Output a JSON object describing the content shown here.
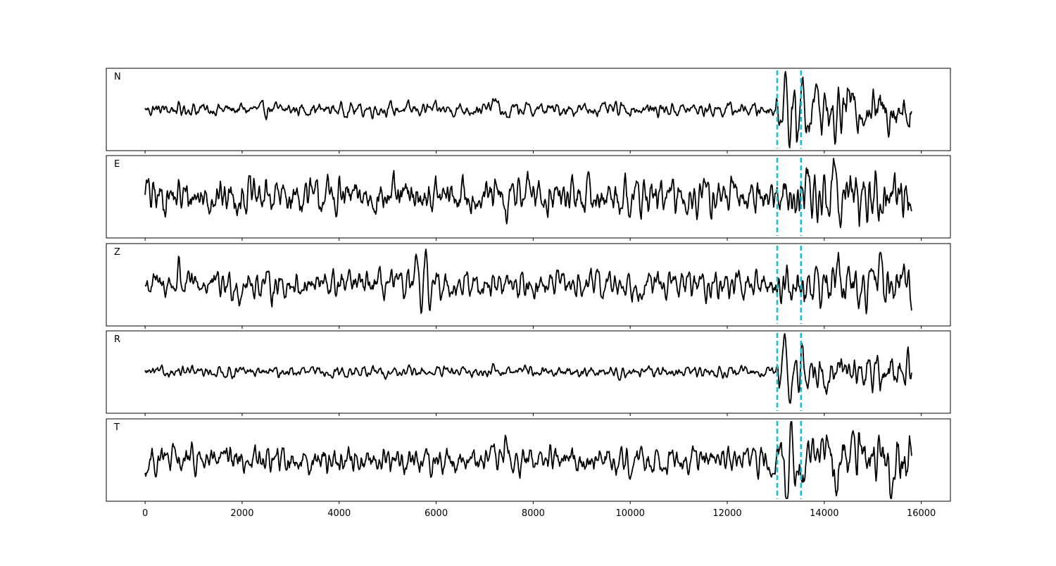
{
  "chart_data": {
    "type": "line",
    "title": "",
    "xlabel": "",
    "ylabel": "",
    "xlim": [
      -800,
      16600
    ],
    "x_ticks": [
      0,
      2000,
      4000,
      6000,
      8000,
      10000,
      12000,
      14000,
      16000
    ],
    "x_tick_labels": [
      "0",
      "2000",
      "4000",
      "6000",
      "8000",
      "10000",
      "12000",
      "14000",
      "16000"
    ],
    "grid": false,
    "legend": "none",
    "sample_range": [
      0,
      15800
    ],
    "pick_lines": [
      {
        "x": 13030,
        "color": "#17becf"
      },
      {
        "x": 13520,
        "color": "#17becf"
      }
    ],
    "trace_color": "#000000",
    "panels": [
      {
        "label": "N",
        "noise": 0.15,
        "features": [
          {
            "t": 7200,
            "a": 0.45,
            "w": 70
          },
          {
            "t": 7450,
            "a": -0.4,
            "w": 60
          },
          {
            "t": 13080,
            "a": -0.25,
            "w": 40
          },
          {
            "t": 13200,
            "a": 1.6,
            "w": 45
          },
          {
            "t": 13280,
            "a": -1.0,
            "w": 50
          },
          {
            "t": 13430,
            "a": -0.9,
            "w": 40
          },
          {
            "t": 13560,
            "a": 1.0,
            "w": 45
          },
          {
            "t": 13660,
            "a": -0.7,
            "w": 45
          },
          {
            "t": 13800,
            "a": 0.6,
            "w": 60
          },
          {
            "t": 14200,
            "a": -0.8,
            "w": 60
          },
          {
            "t": 14500,
            "a": 0.5,
            "w": 70
          }
        ],
        "tail_noise": 0.45
      },
      {
        "label": "E",
        "noise": 0.4,
        "features": [
          {
            "t": 20,
            "a": 0.65,
            "w": 30
          },
          {
            "t": 7450,
            "a": -1.1,
            "w": 50
          },
          {
            "t": 7700,
            "a": 0.6,
            "w": 60
          },
          {
            "t": 7950,
            "a": 0.5,
            "w": 60
          },
          {
            "t": 13200,
            "a": 1.2,
            "w": 45
          },
          {
            "t": 13320,
            "a": -0.9,
            "w": 45
          },
          {
            "t": 13650,
            "a": 1.0,
            "w": 50
          },
          {
            "t": 14200,
            "a": 1.3,
            "w": 55
          },
          {
            "t": 14350,
            "a": -1.1,
            "w": 55
          },
          {
            "t": 14500,
            "a": 0.8,
            "w": 60
          }
        ],
        "tail_noise": 0.55
      },
      {
        "label": "Z",
        "noise": 0.3,
        "features": [
          {
            "t": 700,
            "a": 0.85,
            "w": 40
          },
          {
            "t": 1950,
            "a": -0.55,
            "w": 40
          },
          {
            "t": 5600,
            "a": 0.9,
            "w": 35
          },
          {
            "t": 5700,
            "a": -1.0,
            "w": 35
          },
          {
            "t": 5800,
            "a": 1.5,
            "w": 35
          },
          {
            "t": 5880,
            "a": -0.8,
            "w": 40
          },
          {
            "t": 14300,
            "a": 1.0,
            "w": 60
          },
          {
            "t": 14750,
            "a": -0.9,
            "w": 55
          },
          {
            "t": 15100,
            "a": 0.9,
            "w": 55
          }
        ],
        "tail_noise": 0.45
      },
      {
        "label": "R",
        "noise": 0.12,
        "features": [
          {
            "t": 7200,
            "a": 0.3,
            "w": 60
          },
          {
            "t": 7850,
            "a": 0.35,
            "w": 60
          },
          {
            "t": 13080,
            "a": -0.25,
            "w": 40
          },
          {
            "t": 13200,
            "a": 1.5,
            "w": 45
          },
          {
            "t": 13290,
            "a": -0.85,
            "w": 50
          },
          {
            "t": 13450,
            "a": -0.5,
            "w": 40
          },
          {
            "t": 13540,
            "a": 0.9,
            "w": 45
          },
          {
            "t": 13630,
            "a": -0.6,
            "w": 45
          },
          {
            "t": 14050,
            "a": -0.6,
            "w": 60
          },
          {
            "t": 14350,
            "a": 0.4,
            "w": 60
          },
          {
            "t": 15700,
            "a": 0.3,
            "w": 70
          }
        ],
        "tail_noise": 0.35
      },
      {
        "label": "T",
        "noise": 0.3,
        "features": [
          {
            "t": 20,
            "a": -0.7,
            "w": 30
          },
          {
            "t": 7450,
            "a": 1.1,
            "w": 50
          },
          {
            "t": 7600,
            "a": -0.6,
            "w": 60
          },
          {
            "t": 13220,
            "a": -1.5,
            "w": 45
          },
          {
            "t": 13350,
            "a": 0.8,
            "w": 50
          },
          {
            "t": 13600,
            "a": -0.9,
            "w": 45
          },
          {
            "t": 14050,
            "a": 1.1,
            "w": 55
          },
          {
            "t": 14250,
            "a": -1.6,
            "w": 55
          },
          {
            "t": 14350,
            "a": 1.1,
            "w": 55
          },
          {
            "t": 14700,
            "a": 0.9,
            "w": 60
          },
          {
            "t": 15400,
            "a": -0.9,
            "w": 60
          }
        ],
        "tail_noise": 0.5
      }
    ]
  }
}
